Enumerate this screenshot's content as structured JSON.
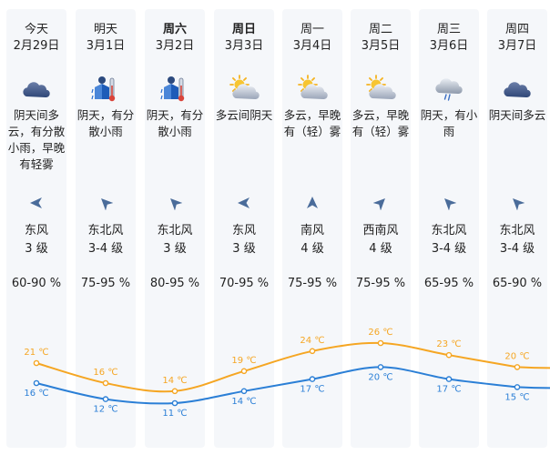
{
  "days": [
    {
      "day": "今天",
      "date": "2月29日",
      "icon": "cloudy-icon",
      "desc": "阴天间多云，有分散小雨，早晚有轻雾",
      "wind_dir": "东风",
      "wind_level": "3 级",
      "wind_rotation": 180,
      "humidity": "60-90 %",
      "high": "21 ℃",
      "low": "16 ℃",
      "bold": false
    },
    {
      "day": "明天",
      "date": "3月1日",
      "icon": "light-rain-icon",
      "desc": "阴天，有分散小雨",
      "wind_dir": "东北风",
      "wind_level": "3-4 级",
      "wind_rotation": 225,
      "humidity": "75-95 %",
      "high": "16 ℃",
      "low": "12 ℃",
      "bold": false
    },
    {
      "day": "周六",
      "date": "3月2日",
      "icon": "light-rain-icon",
      "desc": "阴天，有分散小雨",
      "wind_dir": "东北风",
      "wind_level": "3 级",
      "wind_rotation": 225,
      "humidity": "80-95 %",
      "high": "14 ℃",
      "low": "11 ℃",
      "bold": true
    },
    {
      "day": "周日",
      "date": "3月3日",
      "icon": "partly-cloudy-icon",
      "desc": "多云间阴天",
      "wind_dir": "东风",
      "wind_level": "3 级",
      "wind_rotation": 180,
      "humidity": "70-95 %",
      "high": "19 ℃",
      "low": "14 ℃",
      "bold": true
    },
    {
      "day": "周一",
      "date": "3月4日",
      "icon": "partly-cloudy-icon",
      "desc": "多云，早晚有（轻）雾",
      "wind_dir": "南风",
      "wind_level": "4 级",
      "wind_rotation": 270,
      "humidity": "75-95 %",
      "high": "24 ℃",
      "low": "17 ℃",
      "bold": false
    },
    {
      "day": "周二",
      "date": "3月5日",
      "icon": "partly-cloudy-icon",
      "desc": "多云，早晚有（轻）雾",
      "wind_dir": "西南风",
      "wind_level": "4 级",
      "wind_rotation": 315,
      "humidity": "75-95 %",
      "high": "26 ℃",
      "low": "20 ℃",
      "bold": false
    },
    {
      "day": "周三",
      "date": "3月6日",
      "icon": "rain-cloud-icon",
      "desc": "阴天，有小雨",
      "wind_dir": "东北风",
      "wind_level": "3-4 级",
      "wind_rotation": 225,
      "humidity": "65-95 %",
      "high": "23 ℃",
      "low": "17 ℃",
      "bold": false
    },
    {
      "day": "周四",
      "date": "3月7日",
      "icon": "cloudy-icon",
      "desc": "阴天间多云",
      "wind_dir": "东北风",
      "wind_level": "3-4 级",
      "wind_rotation": 225,
      "humidity": "65-90 %",
      "high": "20 ℃",
      "low": "15 ℃",
      "bold": false
    }
  ],
  "temps": {
    "high": [
      21,
      16,
      14,
      19,
      24,
      26,
      23,
      20
    ],
    "low": [
      16,
      12,
      11,
      14,
      17,
      20,
      17,
      15
    ]
  },
  "colors": {
    "high_line": "#f5a623",
    "low_line": "#2b7fd6",
    "arrow": "#4a6c9a",
    "column_bg": "#f5f7fa"
  }
}
